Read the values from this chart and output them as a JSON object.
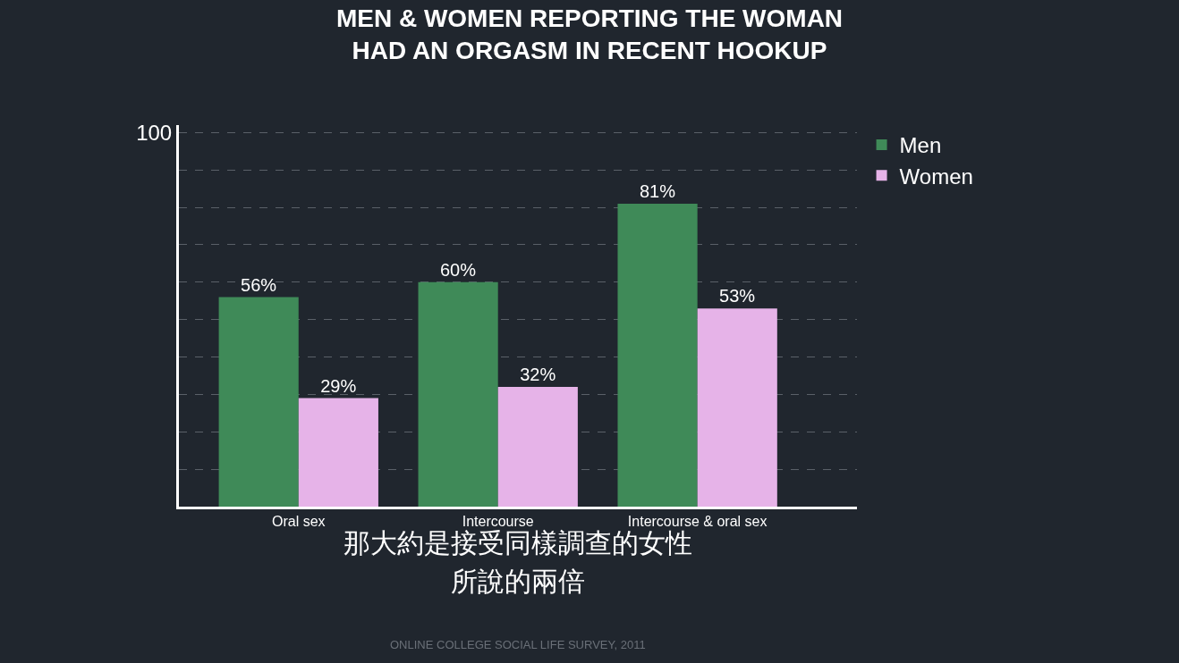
{
  "chart_data": {
    "type": "bar",
    "title": "MEN & WOMEN REPORTING THE WOMAN\nHAD AN ORGASM IN RECENT HOOKUP",
    "categories": [
      "Oral sex",
      "Intercourse",
      "Intercourse & oral sex"
    ],
    "series": [
      {
        "name": "Men",
        "color": "#3f8a58",
        "values": [
          56,
          60,
          81
        ],
        "value_labels": [
          "56%",
          "60%",
          "81%"
        ]
      },
      {
        "name": "Women",
        "color": "#e6b3e8",
        "values": [
          29,
          32,
          53
        ],
        "value_labels": [
          "29%",
          "32%",
          "53%"
        ]
      }
    ],
    "ylim": [
      0,
      102
    ],
    "yticks": [
      {
        "value": 10,
        "label": null
      },
      {
        "value": 20,
        "label": null
      },
      {
        "value": 30,
        "label": null
      },
      {
        "value": 40,
        "label": null
      },
      {
        "value": 50,
        "label": null
      },
      {
        "value": 60,
        "label": null
      },
      {
        "value": 70,
        "label": null
      },
      {
        "value": 80,
        "label": null
      },
      {
        "value": 90,
        "label": null
      },
      100
    ],
    "grid": "y",
    "legend": "top right",
    "annotations": [
      "那大約是接受同樣調查的女性",
      "所說的兩倍",
      "ONLINE COLLEGE SOCIAL LIFE SURVEY, 2011"
    ]
  }
}
